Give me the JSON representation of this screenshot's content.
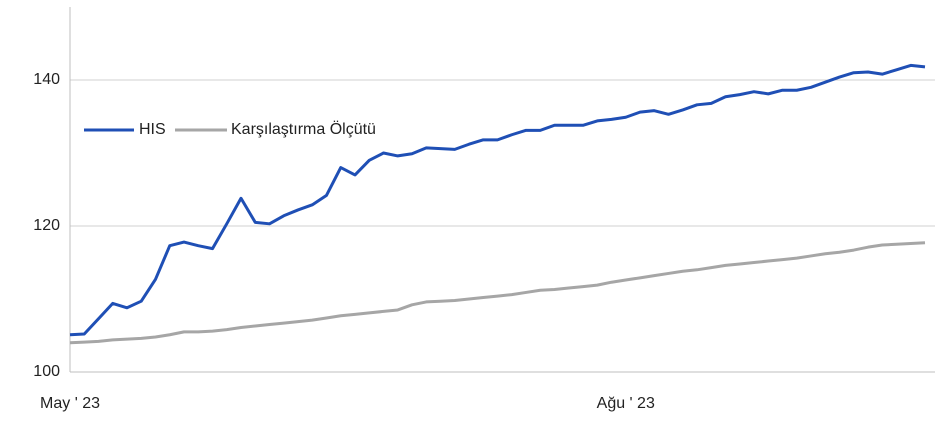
{
  "chart_data": {
    "type": "line",
    "categories": [
      "May ' 23",
      null,
      null,
      null,
      null,
      null,
      null,
      null,
      null,
      null,
      null,
      null,
      null,
      null,
      null,
      null,
      null,
      null,
      null,
      null,
      null,
      null,
      null,
      null,
      null,
      null,
      null,
      null,
      null,
      null,
      null,
      null,
      null,
      null,
      null,
      null,
      null,
      null,
      null,
      "Ağu ' 23",
      null,
      null,
      null,
      null,
      null,
      null,
      null,
      null,
      null,
      null,
      null,
      null,
      null,
      null,
      null,
      null,
      null,
      null,
      null,
      null,
      null
    ],
    "series": [
      {
        "name": "HIS",
        "color": "#1f4fb5",
        "values": [
          105.1,
          105.2,
          107.3,
          109.4,
          108.8,
          109.7,
          112.7,
          117.3,
          117.8,
          117.3,
          116.9,
          120.3,
          123.8,
          120.5,
          120.3,
          121.4,
          122.2,
          122.9,
          124.2,
          128.0,
          127.0,
          129.0,
          130.0,
          129.6,
          129.9,
          130.7,
          130.6,
          130.5,
          131.2,
          131.8,
          131.8,
          132.5,
          133.1,
          133.1,
          133.8,
          133.8,
          133.8,
          134.4,
          134.6,
          134.9,
          135.6,
          135.8,
          135.3,
          135.9,
          136.6,
          136.8,
          137.7,
          138.0,
          138.4,
          138.1,
          138.6,
          138.6,
          139.0,
          139.7,
          140.4,
          141.0,
          141.1,
          140.8,
          141.4,
          142.0,
          141.8
        ]
      },
      {
        "name": "Karşılaştırma Ölçütü",
        "color": "#a6a6a6",
        "values": [
          104.0,
          104.1,
          104.2,
          104.4,
          104.5,
          104.6,
          104.8,
          105.1,
          105.5,
          105.5,
          105.6,
          105.8,
          106.1,
          106.3,
          106.5,
          106.7,
          106.9,
          107.1,
          107.4,
          107.7,
          107.9,
          108.1,
          108.3,
          108.5,
          109.2,
          109.6,
          109.7,
          109.8,
          110.0,
          110.2,
          110.4,
          110.6,
          110.9,
          111.2,
          111.3,
          111.5,
          111.7,
          111.9,
          112.3,
          112.6,
          112.9,
          113.2,
          113.5,
          113.8,
          114.0,
          114.3,
          114.6,
          114.8,
          115.0,
          115.2,
          115.4,
          115.6,
          115.9,
          116.2,
          116.4,
          116.7,
          117.1,
          117.4,
          117.5,
          117.6,
          117.7
        ]
      }
    ],
    "ylim": [
      100,
      150
    ],
    "yticks": [
      100,
      120,
      140
    ],
    "grid": true,
    "legend": "top-left"
  }
}
